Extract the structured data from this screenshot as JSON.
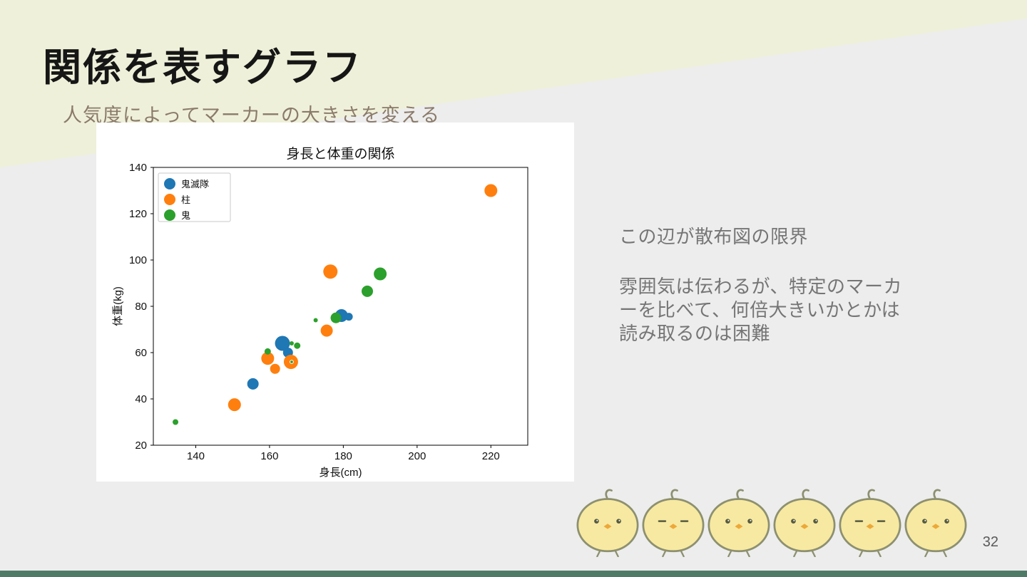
{
  "slide": {
    "title": "関係を表すグラフ",
    "subtitle": "人気度によってマーカーの大きさを変える",
    "notes": {
      "limit": "この辺が散布図の限界",
      "detail_lines": [
        "雰囲気は伝わるが、特定のマーカ",
        "ーを比べて、何倍大きいかとかは",
        "読み取るのは困難"
      ]
    },
    "page_number": "32"
  },
  "colors": {
    "cream_accent": "#eff0d9",
    "slide_bg": "#ededed",
    "bottom_bar": "#4e7b68",
    "subtitle_text": "#8a7a6a",
    "note_text": "#757575",
    "series_blue": "#1f77b4",
    "series_orange": "#ff7f0e",
    "series_green": "#2ca02c"
  },
  "chart_data": {
    "type": "scatter",
    "title": "身長と体重の関係",
    "xlabel": "身長(cm)",
    "ylabel": "体重(kg)",
    "xlim": [
      128.5,
      230
    ],
    "ylim": [
      20,
      140
    ],
    "xticks": [
      140,
      160,
      180,
      200,
      220
    ],
    "yticks": [
      20,
      40,
      60,
      80,
      100,
      120,
      140
    ],
    "grid": false,
    "legend_position": "upper-left",
    "marker_size_encodes": "人気度",
    "series": [
      {
        "name": "鬼滅隊",
        "color": "#1f77b4",
        "points": [
          {
            "x": 163.5,
            "y": 64.0,
            "r": 10.5
          },
          {
            "x": 165.0,
            "y": 60.0,
            "r": 7.0
          },
          {
            "x": 155.5,
            "y": 46.5,
            "r": 8.0
          },
          {
            "x": 179.5,
            "y": 76.0,
            "r": 9.0
          },
          {
            "x": 181.5,
            "y": 75.5,
            "r": 5.5
          }
        ]
      },
      {
        "name": "柱",
        "color": "#ff7f0e",
        "points": [
          {
            "x": 220.0,
            "y": 130.0,
            "r": 9.0
          },
          {
            "x": 176.5,
            "y": 95.0,
            "r": 10.0
          },
          {
            "x": 175.5,
            "y": 69.5,
            "r": 8.5
          },
          {
            "x": 165.8,
            "y": 56.0,
            "r": 10.0
          },
          {
            "x": 161.5,
            "y": 53.0,
            "r": 7.0
          },
          {
            "x": 159.5,
            "y": 57.5,
            "r": 9.0
          },
          {
            "x": 150.5,
            "y": 37.5,
            "r": 9.0
          }
        ]
      },
      {
        "name": "鬼",
        "color": "#2ca02c",
        "points": [
          {
            "x": 190.0,
            "y": 94.0,
            "r": 9.0
          },
          {
            "x": 186.5,
            "y": 86.5,
            "r": 8.0
          },
          {
            "x": 178.0,
            "y": 75.0,
            "r": 7.5
          },
          {
            "x": 167.5,
            "y": 63.0,
            "r": 4.5
          },
          {
            "x": 166.0,
            "y": 64.0,
            "r": 3.0
          },
          {
            "x": 159.5,
            "y": 60.5,
            "r": 4.5
          },
          {
            "x": 172.5,
            "y": 74.0,
            "r": 3.0
          },
          {
            "x": 134.5,
            "y": 30.0,
            "r": 4.0
          },
          {
            "x": 166.0,
            "y": 56.0,
            "r": 2.4,
            "stroke": "#ffffff"
          }
        ]
      }
    ]
  }
}
